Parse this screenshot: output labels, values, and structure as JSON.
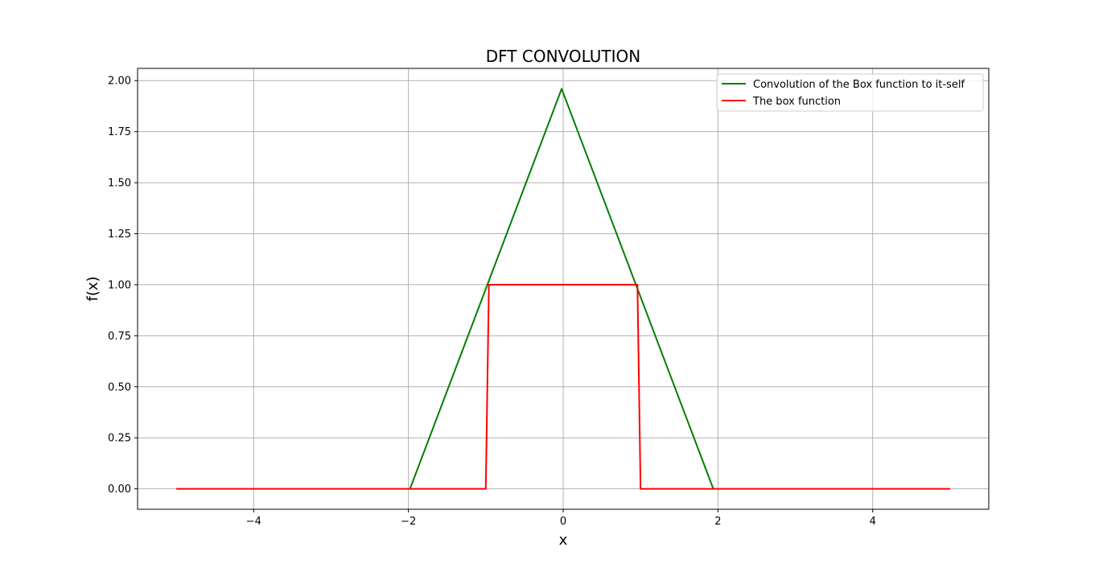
{
  "chart_data": {
    "type": "line",
    "title": "DFT CONVOLUTION",
    "xlabel": "x",
    "ylabel": "f(x)",
    "xlim": [
      -5.5,
      5.5
    ],
    "ylim": [
      -0.1,
      2.06
    ],
    "grid": true,
    "legend_position": "top-right",
    "x_ticks": [
      -4,
      -2,
      0,
      2,
      4
    ],
    "x_tick_labels": [
      "−4",
      "−2",
      "0",
      "2",
      "4"
    ],
    "y_ticks": [
      0,
      0.25,
      0.5,
      0.75,
      1.0,
      1.25,
      1.5,
      1.75,
      2.0
    ],
    "y_tick_labels": [
      "0.00",
      "0.25",
      "0.50",
      "0.75",
      "1.00",
      "1.25",
      "1.50",
      "1.75",
      "2.00"
    ],
    "series": [
      {
        "name": "Convolution of the Box function to it-self",
        "color": "#008000",
        "x": [
          -1.98,
          -0.02,
          1.94
        ],
        "y": [
          0.0,
          1.96,
          0.0
        ]
      },
      {
        "name": "The box function",
        "color": "#ff0000",
        "x": [
          -5.0,
          -1.0,
          -0.96,
          0.96,
          1.0,
          5.0
        ],
        "y": [
          0.0,
          0.0,
          1.0,
          1.0,
          0.0,
          0.0
        ]
      }
    ]
  }
}
